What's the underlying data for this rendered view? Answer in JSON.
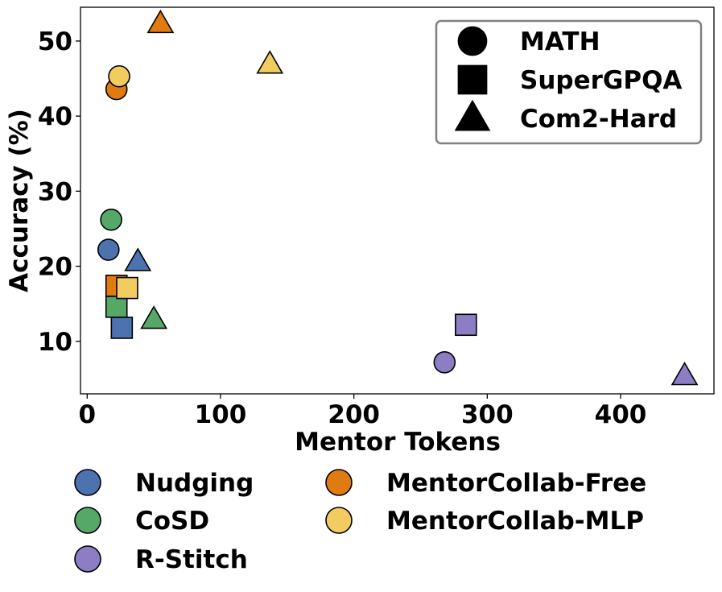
{
  "chart_data": {
    "type": "scatter",
    "xlabel": "Mentor Tokens",
    "ylabel": "Accuracy (%)",
    "xlim": [
      -5,
      470
    ],
    "ylim": [
      3,
      54.5
    ],
    "xticks": [
      0,
      100,
      200,
      300,
      400
    ],
    "yticks": [
      10,
      20,
      30,
      40,
      50
    ],
    "grid": false,
    "colors": {
      "Nudging": "#4c72b0",
      "CoSD": "#55a868",
      "R-Stitch": "#8c7dc4",
      "MentorCollab-Free": "#e07b0f",
      "MentorCollab-MLP": "#f2cc60"
    },
    "marker_legend": {
      "placement": "top-right",
      "entries": [
        {
          "label": "MATH",
          "marker": "circle"
        },
        {
          "label": "SuperGPQA",
          "marker": "square"
        },
        {
          "label": "Com2-Hard",
          "marker": "triangle"
        }
      ]
    },
    "method_legend": {
      "placement": "bottom",
      "entries": [
        "Nudging",
        "CoSD",
        "R-Stitch",
        "MentorCollab-Free",
        "MentorCollab-MLP"
      ]
    },
    "series": [
      {
        "name": "Nudging",
        "points": [
          {
            "dataset": "MATH",
            "x": 16,
            "y": 22.2
          },
          {
            "dataset": "SuperGPQA",
            "x": 26,
            "y": 11.8
          },
          {
            "dataset": "Com2-Hard",
            "x": 38,
            "y": 20.6
          }
        ]
      },
      {
        "name": "CoSD",
        "points": [
          {
            "dataset": "MATH",
            "x": 18,
            "y": 26.2
          },
          {
            "dataset": "SuperGPQA",
            "x": 22,
            "y": 14.6
          },
          {
            "dataset": "Com2-Hard",
            "x": 50,
            "y": 12.9
          }
        ]
      },
      {
        "name": "R-Stitch",
        "points": [
          {
            "dataset": "MATH",
            "x": 268,
            "y": 7.2
          },
          {
            "dataset": "SuperGPQA",
            "x": 284,
            "y": 12.2
          },
          {
            "dataset": "Com2-Hard",
            "x": 448,
            "y": 5.4
          }
        ]
      },
      {
        "name": "MentorCollab-Free",
        "points": [
          {
            "dataset": "MATH",
            "x": 22,
            "y": 43.6
          },
          {
            "dataset": "SuperGPQA",
            "x": 22,
            "y": 17.4
          },
          {
            "dataset": "Com2-Hard",
            "x": 55,
            "y": 52.3
          }
        ]
      },
      {
        "name": "MentorCollab-MLP",
        "points": [
          {
            "dataset": "MATH",
            "x": 24,
            "y": 45.3
          },
          {
            "dataset": "SuperGPQA",
            "x": 30,
            "y": 17.1
          },
          {
            "dataset": "Com2-Hard",
            "x": 137,
            "y": 46.9
          }
        ]
      }
    ]
  }
}
